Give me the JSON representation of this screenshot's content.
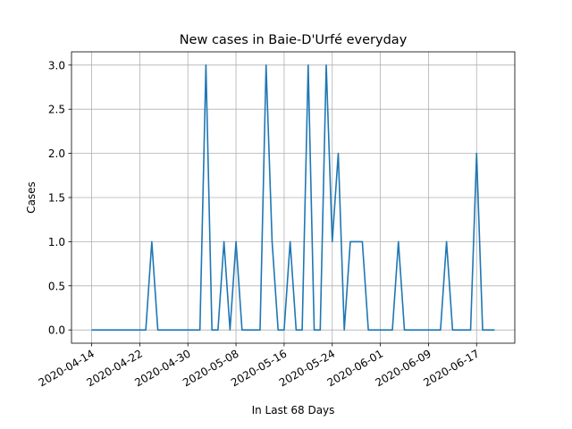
{
  "chart_data": {
    "type": "line",
    "title": "New cases in Baie-D'Urfé everyday",
    "xlabel": "In Last 68 Days",
    "ylabel": "Cases",
    "grid": true,
    "x_type": "date",
    "x": [
      "2020-04-14",
      "2020-04-15",
      "2020-04-16",
      "2020-04-17",
      "2020-04-18",
      "2020-04-19",
      "2020-04-20",
      "2020-04-21",
      "2020-04-22",
      "2020-04-23",
      "2020-04-24",
      "2020-04-25",
      "2020-04-26",
      "2020-04-27",
      "2020-04-28",
      "2020-04-29",
      "2020-04-30",
      "2020-05-01",
      "2020-05-02",
      "2020-05-03",
      "2020-05-04",
      "2020-05-05",
      "2020-05-06",
      "2020-05-07",
      "2020-05-08",
      "2020-05-09",
      "2020-05-10",
      "2020-05-11",
      "2020-05-12",
      "2020-05-13",
      "2020-05-14",
      "2020-05-15",
      "2020-05-16",
      "2020-05-17",
      "2020-05-18",
      "2020-05-19",
      "2020-05-20",
      "2020-05-21",
      "2020-05-22",
      "2020-05-23",
      "2020-05-24",
      "2020-05-25",
      "2020-05-26",
      "2020-05-27",
      "2020-05-28",
      "2020-05-29",
      "2020-05-30",
      "2020-05-31",
      "2020-06-01",
      "2020-06-02",
      "2020-06-03",
      "2020-06-04",
      "2020-06-05",
      "2020-06-06",
      "2020-06-07",
      "2020-06-08",
      "2020-06-09",
      "2020-06-10",
      "2020-06-11",
      "2020-06-12",
      "2020-06-13",
      "2020-06-14",
      "2020-06-15",
      "2020-06-16",
      "2020-06-17",
      "2020-06-18",
      "2020-06-19",
      "2020-06-20"
    ],
    "series": [
      {
        "color": "#1f77b4",
        "values": [
          0,
          0,
          0,
          0,
          0,
          0,
          0,
          0,
          0,
          0,
          1,
          0,
          0,
          0,
          0,
          0,
          0,
          0,
          0,
          3,
          0,
          0,
          1,
          0,
          1,
          0,
          0,
          0,
          0,
          3,
          1,
          0,
          0,
          1,
          0,
          0,
          3,
          0,
          0,
          3,
          1,
          2,
          0,
          1,
          1,
          1,
          0,
          0,
          0,
          0,
          0,
          1,
          0,
          0,
          0,
          0,
          0,
          0,
          0,
          1,
          0,
          0,
          0,
          0,
          2,
          0,
          0,
          0
        ]
      }
    ],
    "xticks": [
      "2020-04-14",
      "2020-04-22",
      "2020-04-30",
      "2020-05-08",
      "2020-05-16",
      "2020-05-24",
      "2020-06-01",
      "2020-06-09",
      "2020-06-17"
    ],
    "yticks": [
      "0.0",
      "0.5",
      "1.0",
      "1.5",
      "2.0",
      "2.5",
      "3.0"
    ],
    "ylim": [
      -0.15,
      3.15
    ]
  }
}
